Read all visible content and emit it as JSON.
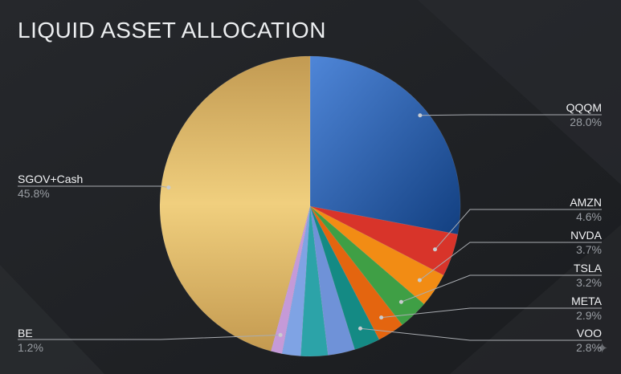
{
  "chart_data": {
    "type": "pie",
    "title": "LIQUID ASSET ALLOCATION",
    "slices": [
      {
        "label": "QQQM",
        "value": 28.0,
        "value_label": "28.0%",
        "color": "#2f63b0"
      },
      {
        "label": "AMZN",
        "value": 4.6,
        "value_label": "4.6%",
        "color": "#d8342a"
      },
      {
        "label": "NVDA",
        "value": 3.7,
        "value_label": "3.7%",
        "color": "#f28c14"
      },
      {
        "label": "TSLA",
        "value": 3.2,
        "value_label": "3.2%",
        "color": "#3f9f45"
      },
      {
        "label": "META",
        "value": 2.9,
        "value_label": "2.9%",
        "color": "#e4650f"
      },
      {
        "label": "VOO",
        "value": 2.8,
        "value_label": "2.8%",
        "color": "#148a84"
      },
      {
        "label": "",
        "value": 2.9,
        "value_label": "",
        "color": "#6f92d8"
      },
      {
        "label": "",
        "value": 2.9,
        "value_label": "",
        "color": "#2ca3a8"
      },
      {
        "label": "",
        "value": 2.0,
        "value_label": "",
        "color": "#7fa3e4"
      },
      {
        "label": "BE",
        "value": 1.2,
        "value_label": "1.2%",
        "color": "#c59ad8"
      },
      {
        "label": "SGOV+Cash",
        "value": 45.8,
        "value_label": "45.8%",
        "color": "#e2b965"
      }
    ]
  }
}
